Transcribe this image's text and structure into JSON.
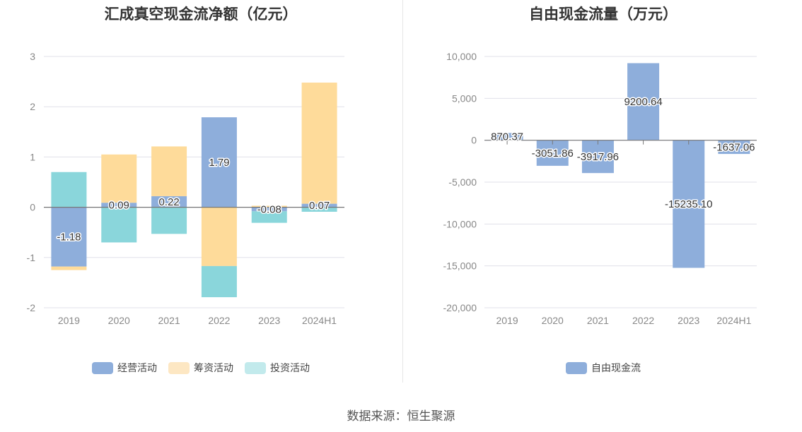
{
  "source": "数据来源：恒生聚源",
  "chart_data": [
    {
      "type": "bar",
      "stacked": true,
      "title": "汇成真空现金流净额（亿元）",
      "categories": [
        "2019",
        "2020",
        "2021",
        "2022",
        "2023",
        "2024H1"
      ],
      "ylim": [
        -2,
        3
      ],
      "yticks": [
        "3",
        "2",
        "1",
        "0",
        "-1",
        "-2"
      ],
      "series": [
        {
          "name": "经营活动",
          "color": "#8eaedb",
          "values": [
            -1.18,
            0.09,
            0.22,
            1.79,
            -0.08,
            0.07
          ]
        },
        {
          "name": "筹资活动",
          "color": "#fedb9a",
          "values": [
            -0.07,
            0.96,
            0.99,
            -1.17,
            0.03,
            2.41
          ]
        },
        {
          "name": "投资活动",
          "color": "#8ad6db",
          "values": [
            0.7,
            -0.7,
            -0.53,
            -0.62,
            -0.23,
            -0.09
          ]
        }
      ],
      "data_labels": [
        "-1.18",
        "0.09",
        "0.22",
        "1.79",
        "-0.08",
        "0.07"
      ],
      "legend": [
        {
          "name": "经营活动",
          "color": "#8eaedb"
        },
        {
          "name": "筹资活动",
          "color": "#fde7c3"
        },
        {
          "name": "投资活动",
          "color": "#c2eaec"
        }
      ]
    },
    {
      "type": "bar",
      "title": "自由现金流量（万元）",
      "categories": [
        "2019",
        "2020",
        "2021",
        "2022",
        "2023",
        "2024H1"
      ],
      "ylim": [
        -20000,
        10000
      ],
      "yticks": [
        "10,000",
        "5,000",
        "0",
        "-5,000",
        "-10,000",
        "-15,000",
        "-20,000"
      ],
      "series": [
        {
          "name": "自由现金流",
          "color": "#8eaedb",
          "values": [
            870.37,
            -3051.86,
            -3917.96,
            9200.64,
            -15235.1,
            -1637.06
          ]
        }
      ],
      "data_labels": [
        "870.37",
        "-3051.86",
        "-3917.96",
        "9200.64",
        "-15235.10",
        "-1637.06"
      ],
      "legend": [
        {
          "name": "自由现金流",
          "color": "#8eaedb"
        }
      ]
    }
  ]
}
